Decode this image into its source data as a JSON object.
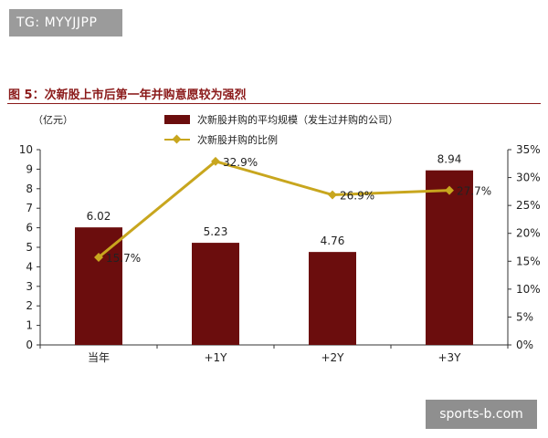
{
  "watermarks": {
    "top_left": "TG: MYYJJPP",
    "bottom_right": "sports-b.com"
  },
  "chart_data": {
    "type": "bar",
    "title": "图 5：次新股上市后第一年并购意愿较为强烈",
    "unit_label": "（亿元）",
    "categories": [
      "当年",
      "+1Y",
      "+2Y",
      "+3Y"
    ],
    "series": [
      {
        "name": "次新股并购的平均规模（发生过并购的公司）",
        "type": "bar",
        "axis": "left",
        "values": [
          6.02,
          5.23,
          4.76,
          8.94
        ],
        "labels": [
          "6.02",
          "5.23",
          "4.76",
          "8.94"
        ],
        "color": "#6b0d0d"
      },
      {
        "name": "次新股并购的比例",
        "type": "line",
        "axis": "right",
        "values": [
          15.7,
          32.9,
          26.9,
          27.7
        ],
        "labels": [
          "15.7%",
          "32.9%",
          "26.9%",
          "27.7%"
        ],
        "color": "#c8a61e"
      }
    ],
    "ylim": [
      0,
      10
    ],
    "yticks": [
      "0",
      "1",
      "2",
      "3",
      "4",
      "5",
      "6",
      "7",
      "8",
      "9",
      "10"
    ],
    "y2lim": [
      0,
      35
    ],
    "y2ticks": [
      "0%",
      "5%",
      "10%",
      "15%",
      "20%",
      "25%",
      "30%",
      "35%"
    ],
    "grid": false,
    "legend": "top"
  }
}
